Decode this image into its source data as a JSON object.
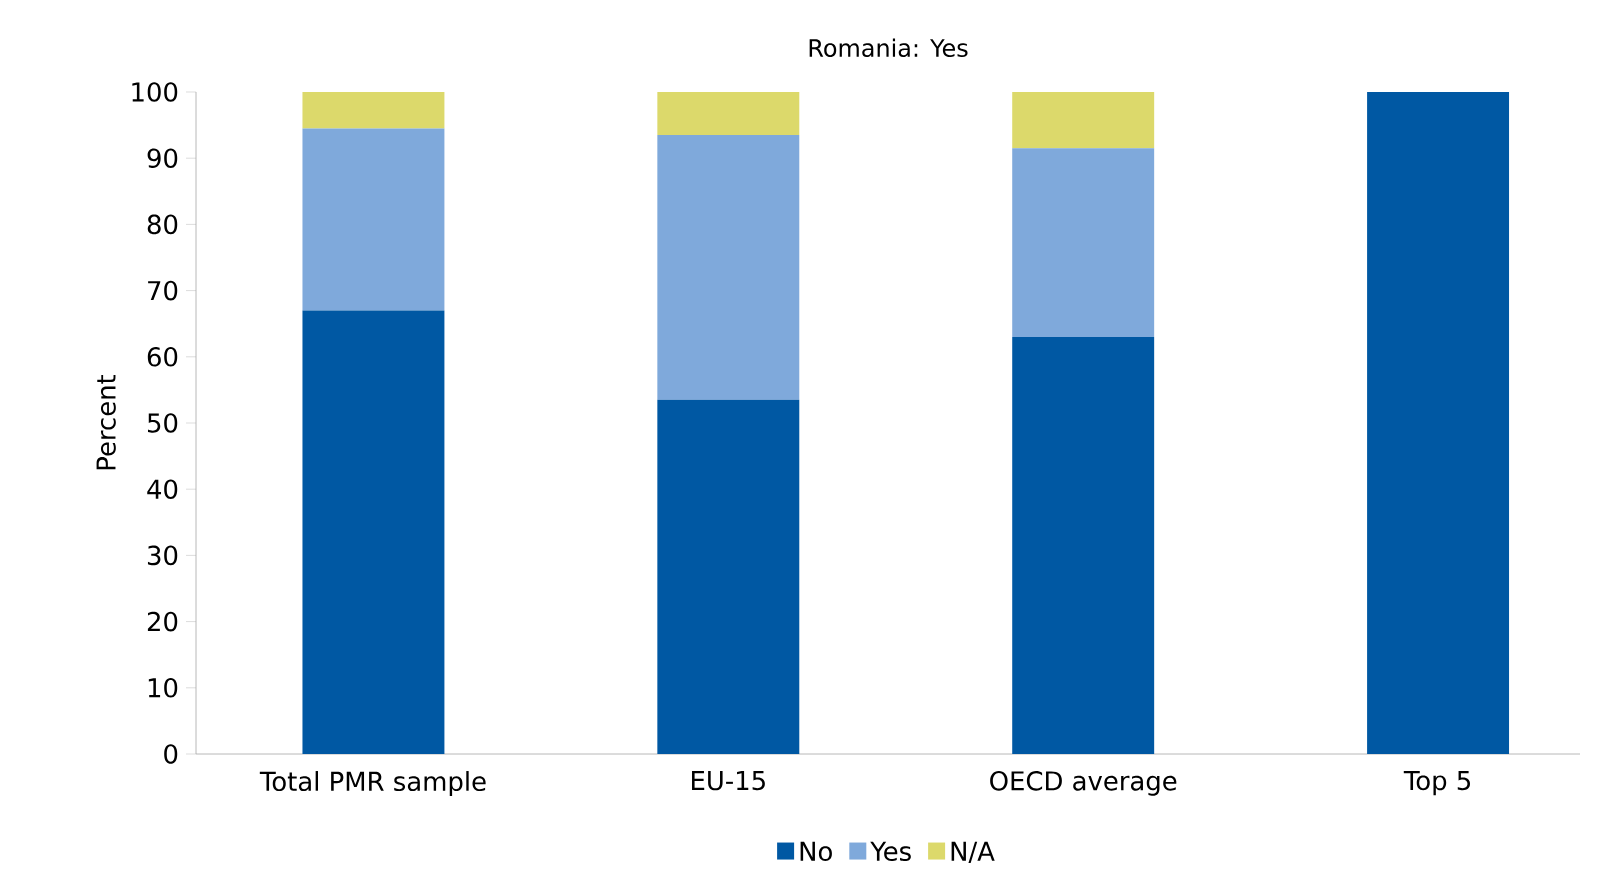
{
  "chart_data": {
    "type": "bar",
    "title": "Romania: Yes",
    "ylabel": "Percent",
    "stacked": true,
    "categories": [
      "Total PMR sample",
      "EU-15",
      "OECD average",
      "Top 5"
    ],
    "series": [
      {
        "name": "No",
        "color": "#0058a3",
        "values": [
          67,
          53.5,
          63,
          100
        ]
      },
      {
        "name": "Yes",
        "color": "#7fa9db",
        "values": [
          27.5,
          40,
          28.5,
          0
        ]
      },
      {
        "name": "N/A",
        "color": "#dcd96b",
        "values": [
          5.5,
          6.5,
          8.5,
          0
        ]
      }
    ],
    "ylim": [
      0,
      100
    ],
    "yticks": [
      0,
      10,
      20,
      30,
      40,
      50,
      60,
      70,
      80,
      90,
      100
    ],
    "grid": false,
    "legend": "bottom"
  }
}
